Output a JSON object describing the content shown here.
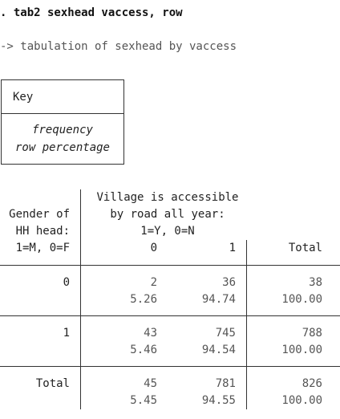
{
  "command": ". tab2 sexhead vaccess, row",
  "subtitle": "-> tabulation of sexhead by vaccess",
  "key": {
    "title": "Key",
    "items": [
      "frequency",
      "row percentage"
    ]
  },
  "table": {
    "row_var_label_lines": [
      "Gender of",
      "HH head:",
      "1=M, 0=F"
    ],
    "col_var_label_lines": [
      "Village is accessible",
      "by road all year:",
      "1=Y, 0=N"
    ],
    "col_headers": [
      "0",
      "1",
      "Total"
    ],
    "rows": [
      {
        "label": "0",
        "freq": [
          "2",
          "36",
          "38"
        ],
        "pct": [
          "5.26",
          "94.74",
          "100.00"
        ]
      },
      {
        "label": "1",
        "freq": [
          "43",
          "745",
          "788"
        ],
        "pct": [
          "5.46",
          "94.54",
          "100.00"
        ]
      },
      {
        "label": "Total",
        "freq": [
          "45",
          "781",
          "826"
        ],
        "pct": [
          "5.45",
          "94.55",
          "100.00"
        ]
      }
    ]
  }
}
